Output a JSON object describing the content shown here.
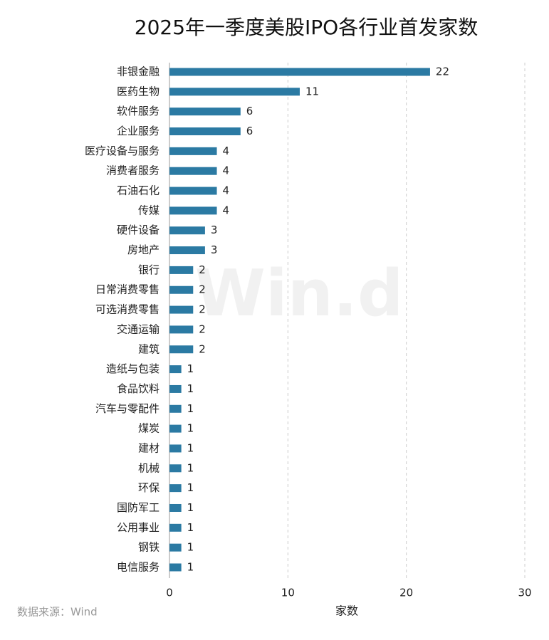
{
  "chart_data": {
    "type": "hbar",
    "title": "2025年一季度美股IPO各行业首发家数",
    "categories": [
      "非银金融",
      "医药生物",
      "软件服务",
      "企业服务",
      "医疗设备与服务",
      "消费者服务",
      "石油石化",
      "传媒",
      "硬件设备",
      "房地产",
      "银行",
      "日常消费零售",
      "可选消费零售",
      "交通运输",
      "建筑",
      "造纸与包装",
      "食品饮料",
      "汽车与零配件",
      "煤炭",
      "建材",
      "机械",
      "环保",
      "国防军工",
      "公用事业",
      "钢铁",
      "电信服务"
    ],
    "values": [
      22,
      11,
      6,
      6,
      4,
      4,
      4,
      4,
      3,
      3,
      2,
      2,
      2,
      2,
      2,
      1,
      1,
      1,
      1,
      1,
      1,
      1,
      1,
      1,
      1,
      1
    ],
    "color": "#2b7aa3",
    "xlim": [
      0,
      30
    ],
    "xticks": [
      0,
      10,
      20,
      30
    ],
    "grid": true,
    "x_label": "家数",
    "source": "数据来源：Wind",
    "watermark": "Win.d"
  }
}
